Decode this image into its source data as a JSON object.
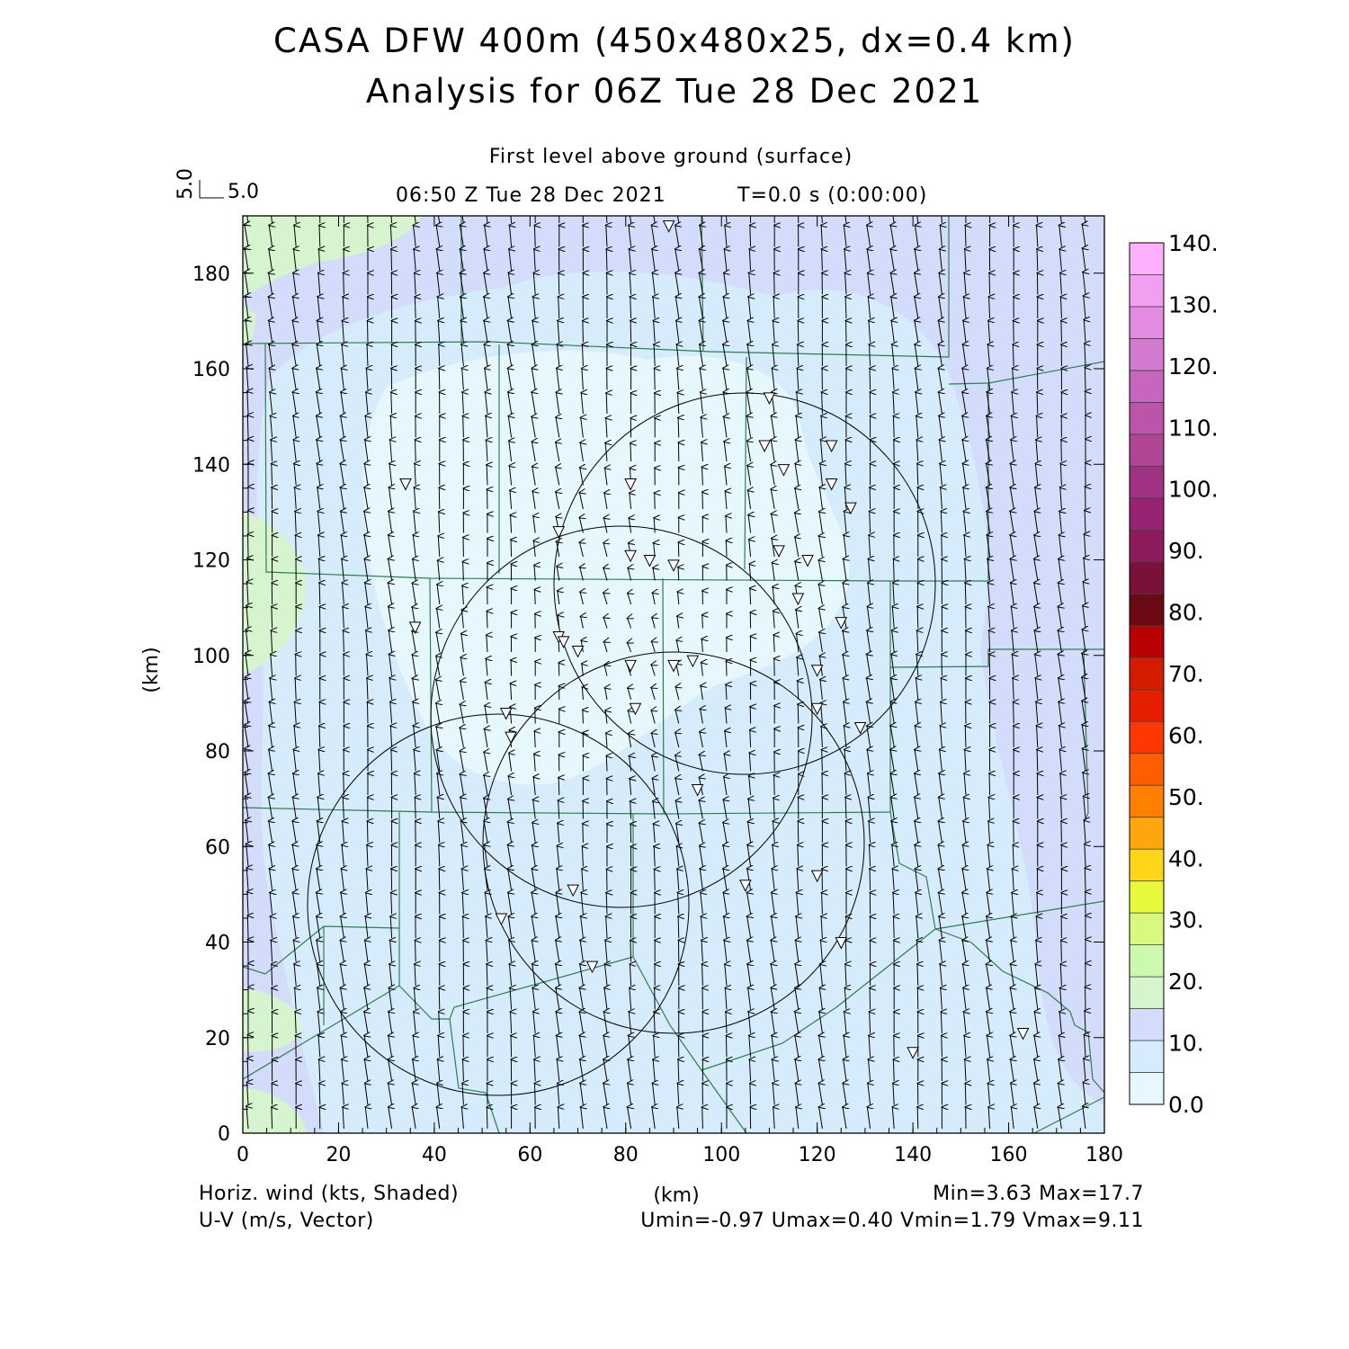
{
  "header": {
    "title_line1": "CASA DFW 400m (450x480x25, dx=0.4 km)",
    "title_line2": "Analysis for 06Z Tue 28 Dec 2021",
    "level": "First level above ground (surface)",
    "valid_time": "06:50 Z Tue 28 Dec 2021",
    "forecast_time": "T=0.0 s (0:00:00)",
    "ref_vector_v": "5.0",
    "ref_vector_u": "5.0"
  },
  "footer": {
    "shaded_field": "Horiz. wind (kts, Shaded)",
    "vector_field": "U-V (m/s, Vector)",
    "min_max": "Min=3.63 Max=17.7",
    "uv_stats": "Umin=-0.97 Umax=0.40 Vmin=1.79 Vmax=9.11"
  },
  "axes": {
    "xlabel": "(km)",
    "ylabel": "(km)",
    "x_ticks": [
      "0",
      "20",
      "40",
      "60",
      "80",
      "100",
      "120",
      "140",
      "160",
      "180"
    ],
    "y_ticks": [
      "0",
      "20",
      "40",
      "60",
      "80",
      "100",
      "120",
      "140",
      "160",
      "180"
    ]
  },
  "colorbar": {
    "labels": [
      "0.0",
      "10.",
      "20.",
      "30.",
      "40.",
      "50.",
      "60.",
      "70.",
      "80.",
      "90.",
      "100.",
      "110.",
      "120.",
      "130.",
      "140."
    ],
    "colors": [
      "#e6f8fe",
      "#d6ecfc",
      "#d3dcfa",
      "#d6f5cf",
      "#ccf8b0",
      "#d8f87f",
      "#e8f83a",
      "#ffd61a",
      "#ffa60d",
      "#ff7f00",
      "#ff5e00",
      "#ff3700",
      "#e61e00",
      "#d41c00",
      "#b80000",
      "#6b0a14",
      "#7b1038",
      "#8b1b5b",
      "#962373",
      "#a03283",
      "#b04596",
      "#bb55a9",
      "#c766be",
      "#d27acd",
      "#e48ce2",
      "#f0a0ef",
      "#fdb0fb"
    ]
  },
  "chart_data": {
    "type": "heatmap",
    "domain_km": {
      "x": [
        0,
        180
      ],
      "y": [
        0,
        192
      ]
    },
    "field": "horizontal wind speed (kts), shaded; U-V vectors (m/s)",
    "wind_speed_kts": {
      "min": 3.63,
      "max": 17.7
    },
    "u_ms": {
      "min": -0.97,
      "max": 0.4
    },
    "v_ms": {
      "min": 1.79,
      "max": 9.11
    },
    "radar_range_circles": [
      {
        "center_km": [
          105,
          115
        ],
        "radius_km": 40
      },
      {
        "center_km": [
          79,
          87
        ],
        "radius_km": 40
      },
      {
        "center_km": [
          91,
          61
        ],
        "radius_km": 40
      },
      {
        "center_km": [
          55,
          47
        ],
        "radius_km": 40
      }
    ],
    "stations_km": [
      [
        89,
        190
      ],
      [
        110,
        154
      ],
      [
        34,
        136
      ],
      [
        66,
        126
      ],
      [
        81,
        136
      ],
      [
        123,
        136
      ],
      [
        127,
        131
      ],
      [
        109,
        144
      ],
      [
        113,
        139
      ],
      [
        123,
        144
      ],
      [
        81,
        121
      ],
      [
        85,
        120
      ],
      [
        90,
        119
      ],
      [
        112,
        122
      ],
      [
        118,
        120
      ],
      [
        116,
        112
      ],
      [
        125,
        107
      ],
      [
        36,
        106
      ],
      [
        66,
        104
      ],
      [
        67,
        103
      ],
      [
        70,
        101
      ],
      [
        81,
        98
      ],
      [
        90,
        98
      ],
      [
        94,
        99
      ],
      [
        120,
        97
      ],
      [
        82,
        89
      ],
      [
        120,
        89
      ],
      [
        129,
        85
      ],
      [
        55,
        88
      ],
      [
        56,
        83
      ],
      [
        95,
        72
      ],
      [
        69,
        51
      ],
      [
        105,
        52
      ],
      [
        120,
        54
      ],
      [
        54,
        45
      ],
      [
        125,
        40
      ],
      [
        73,
        35
      ],
      [
        140,
        17
      ],
      [
        163,
        21
      ]
    ]
  }
}
